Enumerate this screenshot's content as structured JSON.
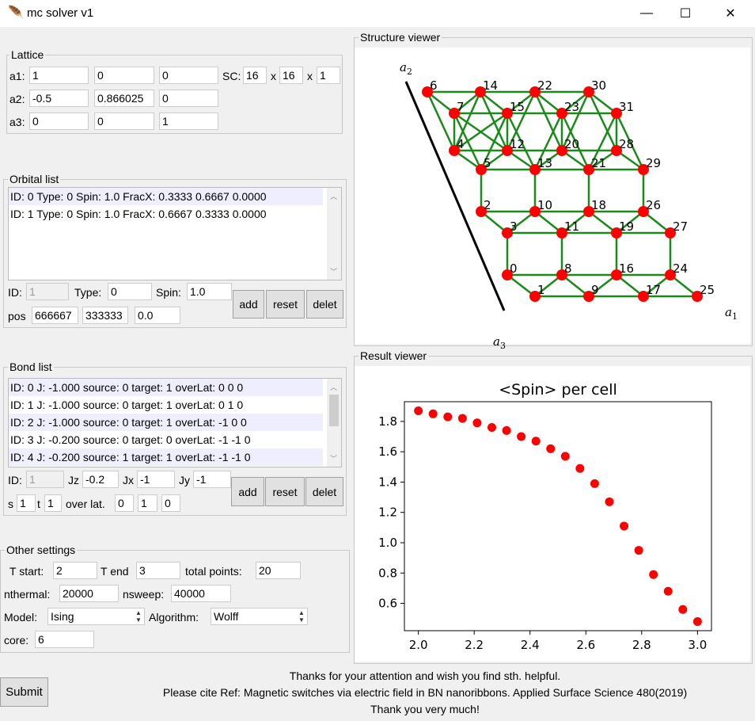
{
  "window": {
    "title": "mc solver v1",
    "minimize": "—",
    "maximize": "☐",
    "close": "✕"
  },
  "lattice": {
    "legend": "Lattice",
    "a1_label": "a1:",
    "a2_label": "a2:",
    "a3_label": "a3:",
    "a1": [
      "1",
      "0",
      "0"
    ],
    "a2": [
      "-0.5",
      "0.866025",
      "0"
    ],
    "a3": [
      "0",
      "0",
      "1"
    ],
    "sc_label": "SC:",
    "sc": [
      "16",
      "16",
      "1"
    ],
    "x_label": "x"
  },
  "orbital": {
    "legend": "Orbital list",
    "items": [
      "ID: 0 Type: 0 Spin: 1.0 FracX: 0.3333 0.6667 0.0000",
      "ID: 1 Type: 0 Spin: 1.0 FracX: 0.6667 0.3333 0.0000"
    ],
    "id_label": "ID:",
    "id_value": "1",
    "type_label": "Type:",
    "type_value": "0",
    "spin_label": "Spin:",
    "spin_value": "1.0",
    "pos_label": "pos",
    "pos": [
      "666667",
      "333333",
      "0.0"
    ],
    "add": "add",
    "reset": "reset",
    "delete": "delet"
  },
  "bond": {
    "legend": "Bond list",
    "items": [
      "ID: 0 J: -1.000 source: 0 target: 1 overLat: 0 0 0",
      "ID: 1 J: -1.000 source: 0 target: 1 overLat: 0 1 0",
      "ID: 2 J: -1.000 source: 0 target: 1 overLat: -1 0 0",
      "ID: 3 J: -0.200 source: 0 target: 0 overLat: -1 -1 0",
      "ID: 4 J: -0.200 source: 1 target: 1 overLat: -1 -1 0"
    ],
    "id_label": "ID:",
    "id_value": "1",
    "jz_label": "Jz",
    "jz": "-0.2",
    "jx_label": "Jx",
    "jx": "-1",
    "jy_label": "Jy",
    "jy": "-1",
    "s_label": "s",
    "s": "1",
    "t_label": "t",
    "t": "1",
    "overlat_label": "over lat.",
    "overlat": [
      "0",
      "1",
      "0"
    ],
    "add": "add",
    "reset": "reset",
    "delete": "delet"
  },
  "other": {
    "legend": "Other settings",
    "tstart_label": "T start:",
    "tstart": "2",
    "tend_label": "T end",
    "tend": "3",
    "points_label": "total points:",
    "points": "20",
    "nthermal_label": "nthermal:",
    "nthermal": "20000",
    "nsweep_label": "nsweep:",
    "nsweep": "40000",
    "model_label": "Model:",
    "model": "Ising",
    "algorithm_label": "Algorithm:",
    "algorithm": "Wolff",
    "core_label": "core:",
    "core": "6"
  },
  "submit": "Submit",
  "footer": [
    "Thanks for your attention and wish you find sth. helpful.",
    "Please cite Ref: Magnetic switches via electric field in BN nanoribbons. Applied Surface Science 480(2019)",
    "Thank you very much!"
  ],
  "structure_viewer": {
    "legend": "Structure viewer",
    "axis_a1": "a1",
    "axis_a2": "a2",
    "axis_a3": "a3",
    "sites": [
      "0",
      "1",
      "2",
      "3",
      "4",
      "5",
      "6",
      "7",
      "8",
      "9",
      "10",
      "11",
      "12",
      "13",
      "14",
      "15",
      "16",
      "17",
      "18",
      "19",
      "20",
      "21",
      "22",
      "23",
      "24",
      "25",
      "26",
      "27",
      "28",
      "29",
      "30",
      "31"
    ],
    "bond_color": "#1a8a1a",
    "site_color": "#ff0000"
  },
  "result_viewer": {
    "legend": "Result viewer"
  },
  "chart_data": {
    "type": "scatter",
    "title": "<Spin> per cell",
    "xlabel": "",
    "ylabel": "",
    "xlim": [
      1.95,
      3.05
    ],
    "ylim": [
      0.42,
      1.93
    ],
    "xticks": [
      "2.0",
      "2.2",
      "2.4",
      "2.6",
      "2.8",
      "3.0"
    ],
    "yticks": [
      "0.6",
      "0.8",
      "1.0",
      "1.2",
      "1.4",
      "1.6",
      "1.8"
    ],
    "color": "#ff0000",
    "x": [
      2.0,
      2.0526,
      2.1053,
      2.1579,
      2.2105,
      2.2632,
      2.3158,
      2.3684,
      2.4211,
      2.4737,
      2.5263,
      2.5789,
      2.6316,
      2.6842,
      2.7368,
      2.7895,
      2.8421,
      2.8947,
      2.9474,
      3.0
    ],
    "y": [
      1.87,
      1.85,
      1.83,
      1.82,
      1.79,
      1.76,
      1.74,
      1.7,
      1.67,
      1.62,
      1.57,
      1.49,
      1.39,
      1.27,
      1.11,
      0.95,
      0.79,
      0.68,
      0.56,
      0.48
    ]
  }
}
